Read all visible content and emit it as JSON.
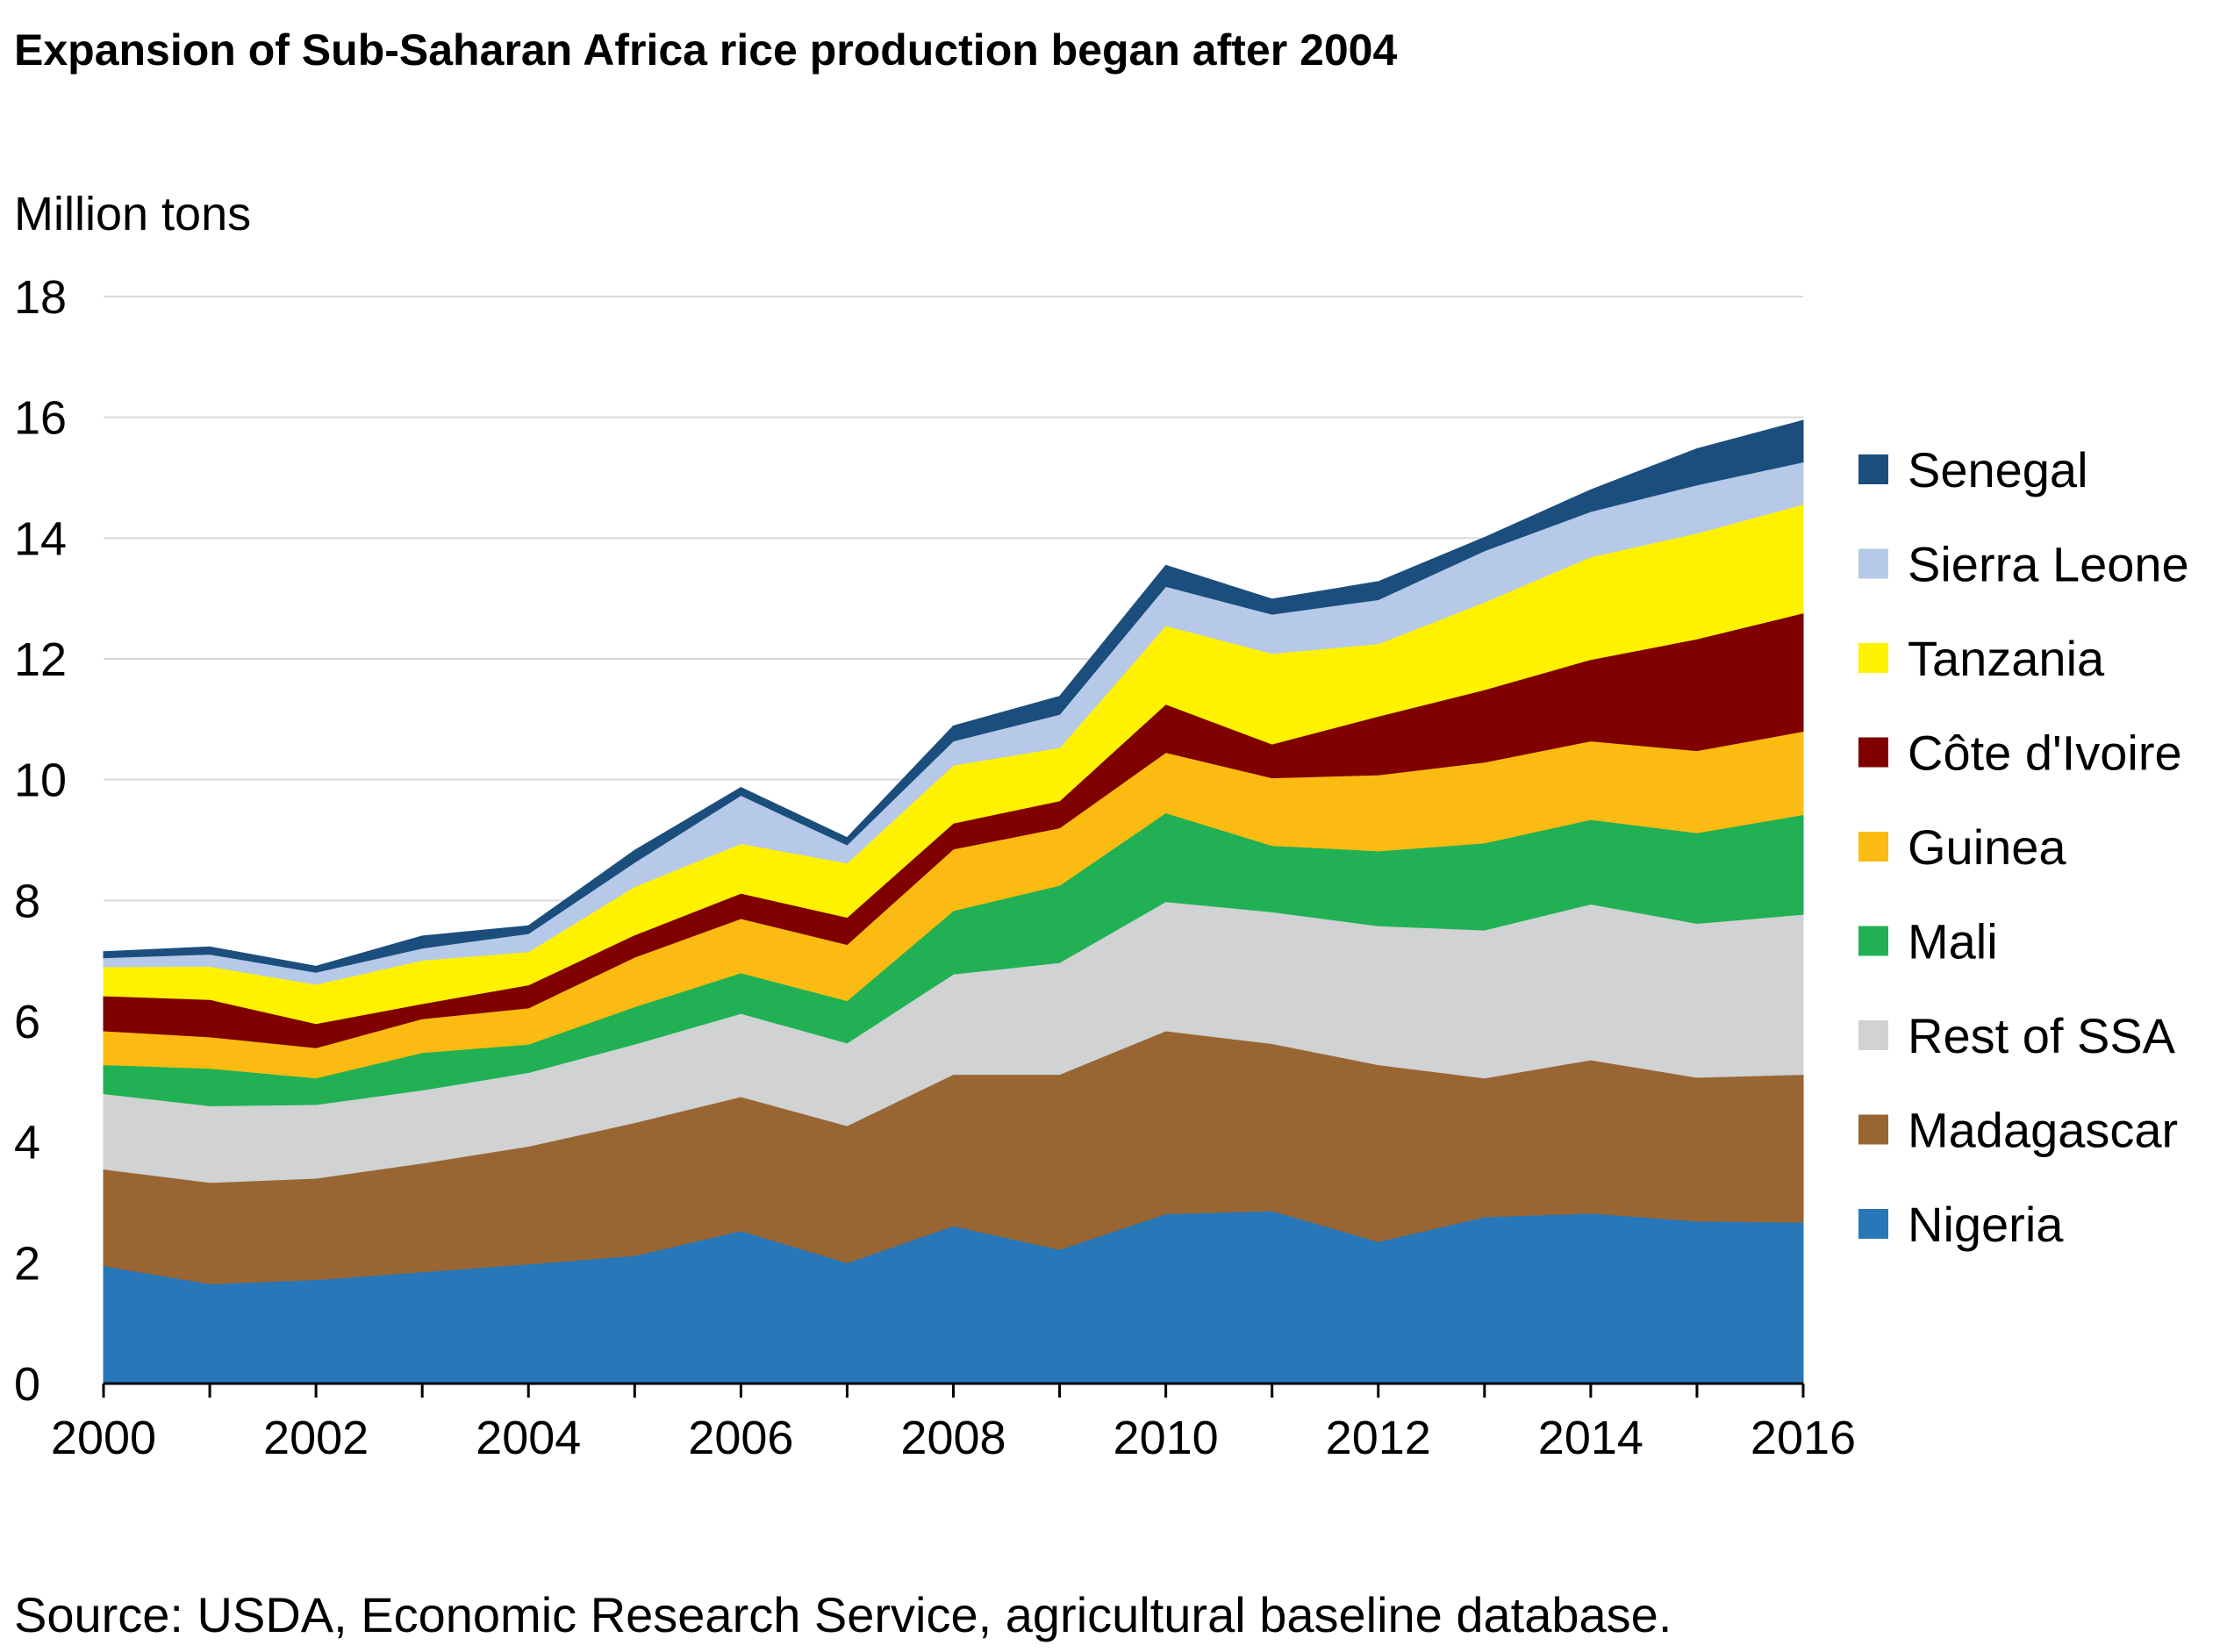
{
  "title": "Expansion of Sub-Saharan Africa rice production began after 2004",
  "source": "Source: USDA, Economic Research Service, agricultural baseline database.",
  "chart_data": {
    "type": "area",
    "stacked": true,
    "title": "Expansion of Sub-Saharan Africa rice production began after 2004",
    "ylabel": "Million tons",
    "xlabel": "",
    "ylim": [
      0,
      18
    ],
    "yticks": [
      0,
      2,
      4,
      6,
      8,
      10,
      12,
      14,
      16,
      18
    ],
    "xlim": [
      2000,
      2016
    ],
    "xticks": [
      2000,
      2002,
      2004,
      2006,
      2008,
      2010,
      2012,
      2014,
      2016
    ],
    "grid": "horizontal",
    "legend_position": "right",
    "x": [
      2000,
      2001,
      2002,
      2003,
      2004,
      2005,
      2006,
      2007,
      2008,
      2009,
      2010,
      2011,
      2012,
      2013,
      2014,
      2015,
      2016
    ],
    "series": [
      {
        "name": "Nigeria",
        "color": "#2777b9",
        "values": [
          1.95,
          1.65,
          1.72,
          1.85,
          1.98,
          2.12,
          2.53,
          2.0,
          2.61,
          2.22,
          2.81,
          2.86,
          2.35,
          2.76,
          2.82,
          2.69,
          2.67
        ]
      },
      {
        "name": "Madagascar",
        "color": "#996633",
        "values": [
          1.6,
          1.68,
          1.68,
          1.8,
          1.95,
          2.2,
          2.22,
          2.27,
          2.51,
          2.9,
          3.03,
          2.77,
          2.93,
          2.3,
          2.54,
          2.38,
          2.45
        ]
      },
      {
        "name": "Rest of SSA",
        "color": "#d0d2d3",
        "values": [
          1.25,
          1.27,
          1.22,
          1.21,
          1.22,
          1.3,
          1.38,
          1.37,
          1.66,
          1.85,
          2.14,
          2.18,
          2.3,
          2.45,
          2.58,
          2.55,
          2.65
        ]
      },
      {
        "name": "Mali",
        "color": "#21b154",
        "values": [
          0.48,
          0.62,
          0.44,
          0.62,
          0.47,
          0.62,
          0.67,
          0.7,
          1.05,
          1.28,
          1.47,
          1.1,
          1.24,
          1.44,
          1.4,
          1.5,
          1.65
        ]
      },
      {
        "name": "Guinea",
        "color": "#fbbb13",
        "values": [
          0.56,
          0.52,
          0.5,
          0.56,
          0.6,
          0.82,
          0.9,
          0.93,
          1.02,
          0.95,
          1.0,
          1.12,
          1.26,
          1.34,
          1.3,
          1.36,
          1.38
        ]
      },
      {
        "name": "Côte d'Ivoire",
        "color": "#800000",
        "values": [
          0.58,
          0.62,
          0.4,
          0.25,
          0.38,
          0.37,
          0.42,
          0.45,
          0.43,
          0.45,
          0.8,
          0.56,
          0.97,
          1.2,
          1.35,
          1.85,
          1.96
        ]
      },
      {
        "name": "Tanzania",
        "color": "#fff200",
        "values": [
          0.48,
          0.55,
          0.65,
          0.72,
          0.55,
          0.8,
          0.82,
          0.9,
          0.96,
          0.88,
          1.3,
          1.5,
          1.2,
          1.45,
          1.7,
          1.75,
          1.8
        ]
      },
      {
        "name": "Sierra Leone",
        "color": "#b6c9e8",
        "values": [
          0.15,
          0.2,
          0.2,
          0.2,
          0.3,
          0.4,
          0.8,
          0.3,
          0.4,
          0.55,
          0.65,
          0.65,
          0.73,
          0.85,
          0.75,
          0.8,
          0.7
        ]
      },
      {
        "name": "Senegal",
        "color": "#1b4e7d",
        "values": [
          0.1,
          0.12,
          0.1,
          0.2,
          0.13,
          0.2,
          0.13,
          0.12,
          0.25,
          0.3,
          0.35,
          0.25,
          0.3,
          0.22,
          0.36,
          0.6,
          0.69
        ]
      }
    ]
  }
}
